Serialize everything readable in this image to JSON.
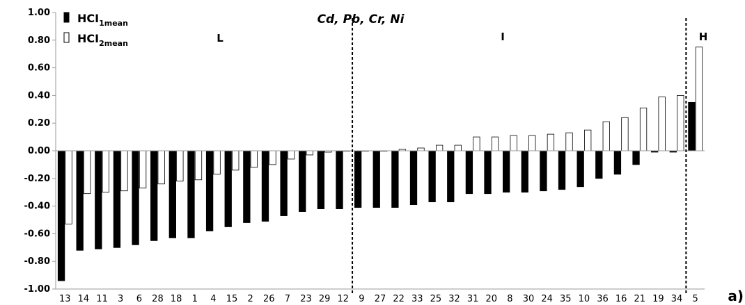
{
  "chart_data": {
    "type": "bar",
    "title": "Cd, Pb, Cr, Ni",
    "panel_label": "a)",
    "categories": [
      "13",
      "14",
      "11",
      "3",
      "6",
      "28",
      "18",
      "1",
      "4",
      "15",
      "2",
      "26",
      "7",
      "23",
      "29",
      "12",
      "9",
      "27",
      "22",
      "33",
      "25",
      "32",
      "31",
      "20",
      "8",
      "30",
      "24",
      "35",
      "10",
      "36",
      "16",
      "21",
      "19",
      "34",
      "5"
    ],
    "series": [
      {
        "name": "HCI1mean",
        "main": "HCI",
        "sub": "1mean",
        "fill": "#000000",
        "values": [
          -0.94,
          -0.72,
          -0.71,
          -0.7,
          -0.68,
          -0.65,
          -0.63,
          -0.63,
          -0.58,
          -0.55,
          -0.52,
          -0.51,
          -0.47,
          -0.44,
          -0.42,
          -0.42,
          -0.41,
          -0.41,
          -0.41,
          -0.39,
          -0.37,
          -0.37,
          -0.31,
          -0.31,
          -0.3,
          -0.3,
          -0.29,
          -0.28,
          -0.26,
          -0.2,
          -0.17,
          -0.1,
          -0.01,
          -0.01,
          0.35
        ]
      },
      {
        "name": "HCI2mean",
        "main": "HCI",
        "sub": "2mean",
        "fill": "#ffffff",
        "values": [
          -0.53,
          -0.31,
          -0.3,
          -0.29,
          -0.27,
          -0.24,
          -0.22,
          -0.21,
          -0.17,
          -0.14,
          -0.12,
          -0.1,
          -0.06,
          -0.03,
          -0.01,
          0.0,
          0.0,
          0.0,
          0.01,
          0.02,
          0.04,
          0.04,
          0.1,
          0.1,
          0.11,
          0.11,
          0.12,
          0.13,
          0.15,
          0.21,
          0.24,
          0.31,
          0.39,
          0.4,
          0.75
        ]
      }
    ],
    "ylim": [
      -1.0,
      1.0
    ],
    "ytick_step": 0.2,
    "zones": [
      {
        "label": "L",
        "categories_from": "13",
        "categories_to": "12"
      },
      {
        "label": "I",
        "categories_from": "9",
        "categories_to": "34"
      },
      {
        "label": "H",
        "categories_from": "5",
        "categories_to": "5"
      }
    ],
    "zone_separators_after": [
      "12",
      "34"
    ],
    "legend_placement": "top-left",
    "grid": false
  }
}
